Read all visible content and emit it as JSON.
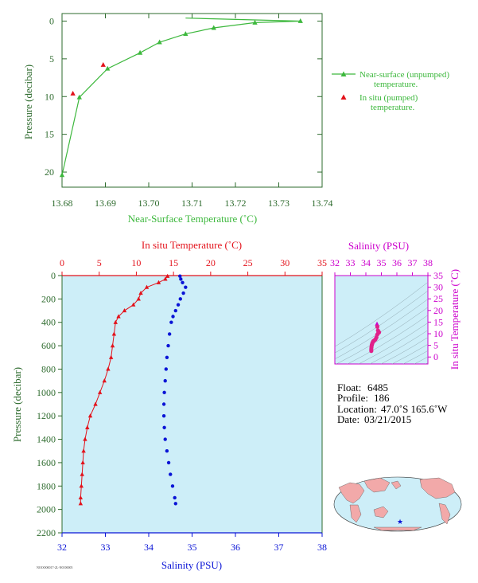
{
  "colors": {
    "green": "#3db83d",
    "red": "#e3121b",
    "blue": "#0a14d6",
    "magenta": "#cc00cc",
    "dark_green_text": "#2e6b2e",
    "panel_bg": "#cdeef8",
    "land": "#f2a9a9"
  },
  "info": {
    "float_label": "Float:",
    "float": "6485",
    "profile_label": "Profile:",
    "profile": "186",
    "location_label": "Location:",
    "location": "47.0˚S  165.6˚W",
    "date_label": "Date:",
    "date": "03/21/2015"
  },
  "footer_tag": "NOOO00017-2L-NOO0005",
  "chart_data": [
    {
      "type": "line",
      "name": "near-surface",
      "xlabel": "Near-Surface Temperature (˚C)",
      "ylabel": "Pressure (decibar)",
      "xlim": [
        13.68,
        13.74
      ],
      "ylim": [
        22,
        -1
      ],
      "xticks": [
        "13.68",
        "13.69",
        "13.70",
        "13.71",
        "13.72",
        "13.73",
        "13.74"
      ],
      "yticks": [
        "0",
        "5",
        "10",
        "15",
        "20"
      ],
      "legend": [
        "Near-surface (unpumped) temperature.",
        "In situ (pumped) temperature."
      ],
      "legend_position": "right",
      "series": [
        {
          "name": "Near-surface (unpumped) temperature.",
          "x": [
            13.68,
            13.684,
            13.6905,
            13.698,
            13.7025,
            13.7085,
            13.715,
            13.7245,
            13.735,
            13.7085
          ],
          "y": [
            20.4,
            10.1,
            6.3,
            4.2,
            2.8,
            1.7,
            0.9,
            0.2,
            0.0,
            -0.4
          ]
        },
        {
          "name": "In situ (pumped) temperature.",
          "x": [
            13.6825,
            13.6895
          ],
          "y": [
            9.6,
            5.8
          ]
        }
      ]
    },
    {
      "type": "scatter",
      "name": "profile",
      "ylabel": "Pressure (decibar)",
      "x_top_label": "In situ Temperature (˚C)",
      "x_bottom_label": "Salinity (PSU)",
      "temperature_lim": [
        0,
        35
      ],
      "salinity_lim": [
        32,
        38
      ],
      "ylim": [
        2200,
        0
      ],
      "temperature_ticks": [
        "0",
        "5",
        "10",
        "15",
        "20",
        "25",
        "30",
        "35"
      ],
      "salinity_ticks": [
        "32",
        "33",
        "34",
        "35",
        "36",
        "37",
        "38"
      ],
      "pressure_ticks": [
        "0",
        "200",
        "400",
        "600",
        "800",
        "1000",
        "1200",
        "1400",
        "1600",
        "1800",
        "2000",
        "2200"
      ],
      "series": [
        {
          "name": "In situ Temperature (˚C)",
          "pressure": [
            5,
            30,
            60,
            100,
            150,
            200,
            250,
            300,
            350,
            400,
            500,
            600,
            700,
            800,
            900,
            1000,
            1100,
            1200,
            1300,
            1400,
            1500,
            1600,
            1700,
            1800,
            1900,
            1950
          ],
          "values": [
            14.2,
            13.9,
            13.0,
            11.4,
            10.6,
            10.3,
            9.6,
            8.4,
            7.6,
            7.2,
            7.0,
            6.8,
            6.6,
            6.2,
            5.7,
            5.1,
            4.5,
            3.8,
            3.4,
            3.1,
            2.9,
            2.8,
            2.7,
            2.6,
            2.5,
            2.5
          ]
        },
        {
          "name": "Salinity (PSU)",
          "pressure": [
            5,
            30,
            60,
            100,
            150,
            200,
            250,
            300,
            350,
            400,
            500,
            600,
            700,
            800,
            900,
            1000,
            1100,
            1200,
            1300,
            1400,
            1500,
            1600,
            1700,
            1800,
            1900,
            1950
          ],
          "values": [
            34.72,
            34.74,
            34.78,
            34.85,
            34.8,
            34.73,
            34.68,
            34.62,
            34.56,
            34.52,
            34.48,
            34.45,
            34.42,
            34.4,
            34.38,
            34.36,
            34.35,
            34.35,
            34.36,
            34.38,
            34.42,
            34.46,
            34.5,
            34.55,
            34.6,
            34.62
          ]
        }
      ]
    },
    {
      "type": "scatter",
      "name": "ts-diagram",
      "xlabel": "Salinity (PSU)",
      "ylabel": "In situ Temperature (˚C)",
      "xlim": [
        32,
        38
      ],
      "ylim": [
        -3,
        35
      ],
      "xticks": [
        "32",
        "33",
        "34",
        "35",
        "36",
        "37",
        "38"
      ],
      "yticks": [
        "0",
        "5",
        "10",
        "15",
        "20",
        "25",
        "30",
        "35"
      ],
      "series": [
        {
          "name": "T-S",
          "salinity": [
            34.72,
            34.74,
            34.78,
            34.85,
            34.8,
            34.73,
            34.68,
            34.62,
            34.56,
            34.52,
            34.48,
            34.45,
            34.42,
            34.4,
            34.38,
            34.36,
            34.35,
            34.35
          ],
          "temperature": [
            14.2,
            13.0,
            11.4,
            10.6,
            10.3,
            9.6,
            8.4,
            7.6,
            7.2,
            7.0,
            6.8,
            6.4,
            6.0,
            5.5,
            5.0,
            4.2,
            3.4,
            2.6
          ]
        }
      ]
    }
  ]
}
